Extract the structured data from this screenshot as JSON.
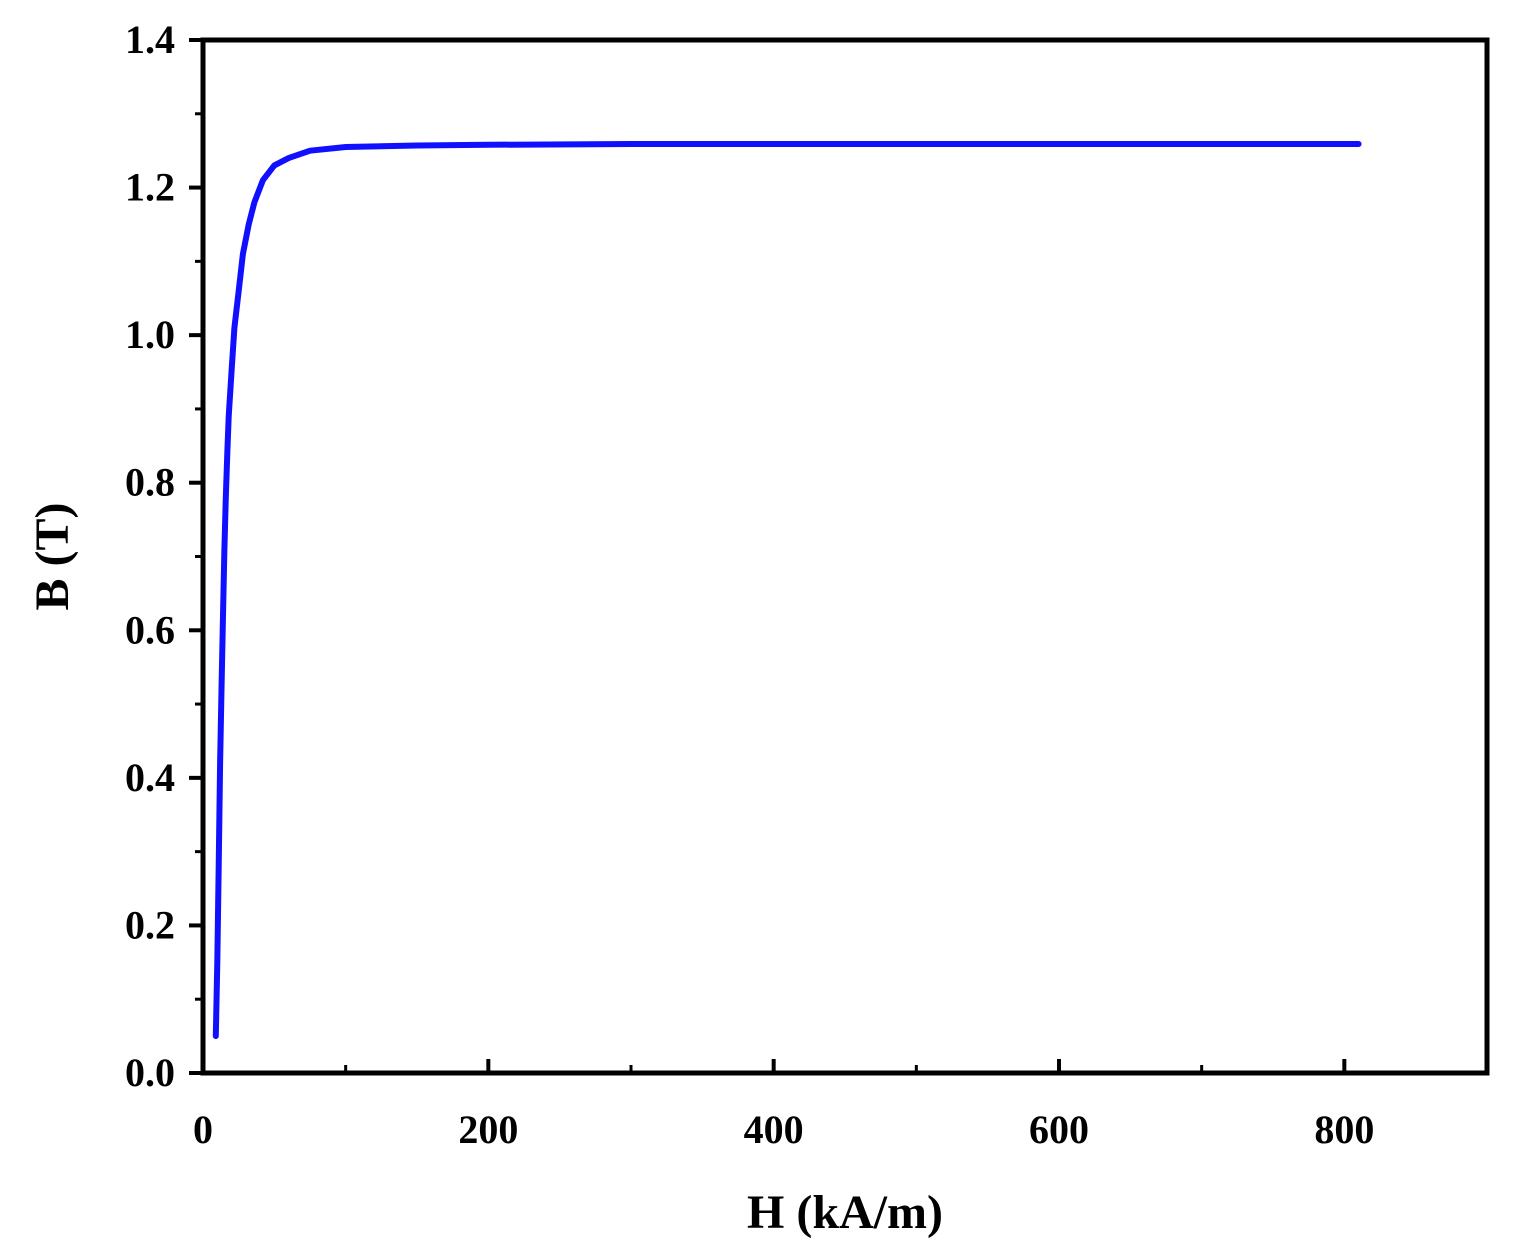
{
  "chart_data": {
    "type": "line",
    "title": "",
    "xlabel": "H (kA/m)",
    "ylabel": "B (T)",
    "xlim": [
      0,
      900
    ],
    "ylim": [
      0.0,
      1.4
    ],
    "x_major_ticks": [
      0,
      200,
      400,
      600,
      800
    ],
    "x_minor_ticks": [
      100,
      300,
      500,
      700,
      900
    ],
    "x_tick_labels": [
      "0",
      "200",
      "400",
      "600",
      "800"
    ],
    "y_major_ticks": [
      0.0,
      0.2,
      0.4,
      0.6,
      0.8,
      1.0,
      1.2,
      1.4
    ],
    "y_minor_ticks": [
      0.1,
      0.3,
      0.5,
      0.7,
      0.9,
      1.1,
      1.3
    ],
    "y_tick_labels": [
      "0.0",
      "0.2",
      "0.4",
      "0.6",
      "0.8",
      "1.0",
      "1.2",
      "1.4"
    ],
    "grid": false,
    "series": [
      {
        "color": "#1010ff",
        "points": [
          [
            9,
            0.05
          ],
          [
            10,
            0.15
          ],
          [
            11,
            0.28
          ],
          [
            12,
            0.42
          ],
          [
            13,
            0.52
          ],
          [
            14,
            0.62
          ],
          [
            15,
            0.71
          ],
          [
            16,
            0.78
          ],
          [
            17,
            0.84
          ],
          [
            18,
            0.89
          ],
          [
            20,
            0.95
          ],
          [
            22,
            1.01
          ],
          [
            25,
            1.06
          ],
          [
            28,
            1.11
          ],
          [
            32,
            1.15
          ],
          [
            36,
            1.18
          ],
          [
            42,
            1.21
          ],
          [
            50,
            1.23
          ],
          [
            60,
            1.24
          ],
          [
            75,
            1.25
          ],
          [
            100,
            1.255
          ],
          [
            150,
            1.257
          ],
          [
            200,
            1.258
          ],
          [
            300,
            1.259
          ],
          [
            400,
            1.259
          ],
          [
            500,
            1.259
          ],
          [
            600,
            1.259
          ],
          [
            700,
            1.259
          ],
          [
            810,
            1.259
          ]
        ]
      }
    ]
  }
}
